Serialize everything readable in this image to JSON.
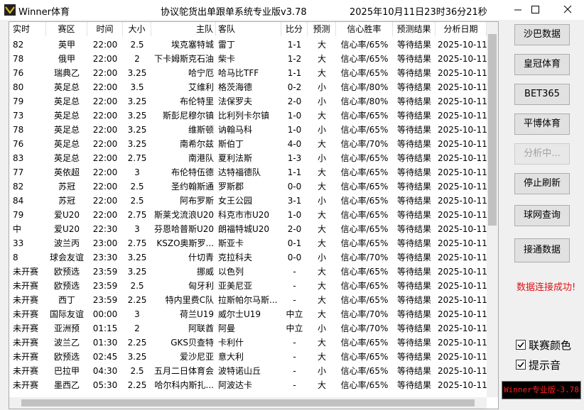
{
  "window": {
    "app_title": "Winner体育",
    "system_title": "协议鸵货出单跟单系统专业版v3.78",
    "clock": "2025年10月11日23时36分21秒"
  },
  "table": {
    "columns": [
      "实时",
      "赛区",
      "时间",
      "大小",
      "主队",
      "客队",
      "比分",
      "预测",
      "信心胜率",
      "预测结果",
      "分析日期"
    ],
    "rows": [
      [
        "82",
        "英甲",
        "22:00",
        "2.5",
        "埃克塞特城",
        "雷丁",
        "1-1",
        "大",
        "信心率/65%",
        "等待结果",
        "2025-10-11"
      ],
      [
        "78",
        "俄甲",
        "22:00",
        "2",
        "下卡姆斯克石油",
        "柴卡",
        "1-2",
        "大",
        "信心率/65%",
        "等待结果",
        "2025-10-11"
      ],
      [
        "76",
        "瑞典乙",
        "22:00",
        "3.25",
        "哈宁厄",
        "哈马比TFF",
        "1-1",
        "大",
        "信心率/65%",
        "等待结果",
        "2025-10-11"
      ],
      [
        "80",
        "英足总",
        "22:00",
        "3.5",
        "艾维利",
        "格茨海德",
        "0-2",
        "小",
        "信心率/80%",
        "等待结果",
        "2025-10-11"
      ],
      [
        "79",
        "英足总",
        "22:00",
        "3.25",
        "布伦特里",
        "法保罗夫",
        "2-0",
        "小",
        "信心率/80%",
        "等待结果",
        "2025-10-11"
      ],
      [
        "73",
        "英足总",
        "22:00",
        "3.25",
        "斯彭尼穆尔镇",
        "比利列卡尔镇",
        "1-0",
        "大",
        "信心率/65%",
        "等待结果",
        "2025-10-11"
      ],
      [
        "78",
        "英足总",
        "22:00",
        "3.25",
        "维斯顿",
        "讷翰马科",
        "1-0",
        "小",
        "信心率/65%",
        "等待结果",
        "2025-10-11"
      ],
      [
        "76",
        "英足总",
        "22:00",
        "3.25",
        "南希尔兹",
        "斯伯丁",
        "4-0",
        "大",
        "信心率/70%",
        "等待结果",
        "2025-10-11"
      ],
      [
        "83",
        "英足总",
        "22:00",
        "2.75",
        "南港队",
        "夏利法斯",
        "1-3",
        "小",
        "信心率/65%",
        "等待结果",
        "2025-10-11"
      ],
      [
        "77",
        "英依超",
        "22:00",
        "3",
        "布伦特伍德",
        "达特福德队",
        "1-1",
        "大",
        "信心率/65%",
        "等待结果",
        "2025-10-11"
      ],
      [
        "82",
        "苏冠",
        "22:00",
        "2.5",
        "圣约翰斯通",
        "罗斯郡",
        "0-0",
        "大",
        "信心率/65%",
        "等待结果",
        "2025-10-11"
      ],
      [
        "84",
        "苏冠",
        "22:00",
        "2.5",
        "阿布罗斯",
        "女王公园",
        "3-1",
        "小",
        "信心率/65%",
        "等待结果",
        "2025-10-11"
      ],
      [
        "79",
        "爱U20",
        "22:00",
        "2.75",
        "斯莱戈流浪U20",
        "科克市市U20",
        "1-0",
        "大",
        "信心率/65%",
        "等待结果",
        "2025-10-11"
      ],
      [
        "中",
        "爱U20",
        "22:30",
        "3",
        "芬恩哈普斯U20",
        "朗福特城U20",
        "2-0",
        "大",
        "信心率/65%",
        "等待结果",
        "2025-10-11"
      ],
      [
        "33",
        "波兰丙",
        "23:00",
        "2.75",
        "KSZO奥斯罗...",
        "斯亚卡",
        "0-1",
        "大",
        "信心率/65%",
        "等待结果",
        "2025-10-11"
      ],
      [
        "8",
        "球会友谊",
        "23:30",
        "3.25",
        "什切青",
        "克拉科夫",
        "0-0",
        "小",
        "信心率/70%",
        "等待结果",
        "2025-10-11"
      ],
      [
        "未开赛",
        "欧预选",
        "23:59",
        "3.25",
        "挪威",
        "以色列",
        "-",
        "大",
        "信心率/65%",
        "等待结果",
        "2025-10-11"
      ],
      [
        "未开赛",
        "欧预选",
        "23:59",
        "2.5",
        "匈牙利",
        "亚美尼亚",
        "-",
        "大",
        "信心率/65%",
        "等待结果",
        "2025-10-11"
      ],
      [
        "未开赛",
        "西丁",
        "23:59",
        "2.25",
        "特内里费C队",
        "拉斯帕尔马斯...",
        "-",
        "大",
        "信心率/65%",
        "等待结果",
        "2025-10-11"
      ],
      [
        "未开赛",
        "国际友谊",
        "00:00",
        "3",
        "荷兰U19",
        "威尔士U19",
        "中立",
        "大",
        "信心率/70%",
        "等待结果",
        "2025-10-11"
      ],
      [
        "未开赛",
        "亚洲预",
        "01:15",
        "2",
        "阿联酋",
        "阿曼",
        "中立",
        "小",
        "信心率/70%",
        "等待结果",
        "2025-10-11"
      ],
      [
        "未开赛",
        "波兰乙",
        "01:30",
        "2.25",
        "GKS贝查特",
        "卡利什",
        "-",
        "大",
        "信心率/65%",
        "等待结果",
        "2025-10-11"
      ],
      [
        "未开赛",
        "欧预选",
        "02:45",
        "3.25",
        "爱沙尼亚",
        "意大利",
        "-",
        "大",
        "信心率/65%",
        "等待结果",
        "2025-10-11"
      ],
      [
        "未开赛",
        "巴拉甲",
        "04:30",
        "2.5",
        "五月二日体育会",
        "波特诺山丘",
        "-",
        "小",
        "信心率/65%",
        "等待结果",
        "2025-10-11"
      ],
      [
        "未开赛",
        "墨西乙",
        "05:30",
        "2.25",
        "哈尔科内斯扎...",
        "阿波达卡",
        "-",
        "大",
        "信心率/65%",
        "等待结果",
        "2025-10-11"
      ]
    ]
  },
  "side_panel": {
    "buttons": [
      "沙巴数据",
      "皇冠体育",
      "BET365",
      "平博体育",
      "分析中...",
      "停止刷新",
      "球网查询",
      "接通数据"
    ],
    "status": "数据连接成功!",
    "checkboxes": [
      "联赛颜色",
      "提示音"
    ],
    "version": "Winner专业版-3.78"
  }
}
